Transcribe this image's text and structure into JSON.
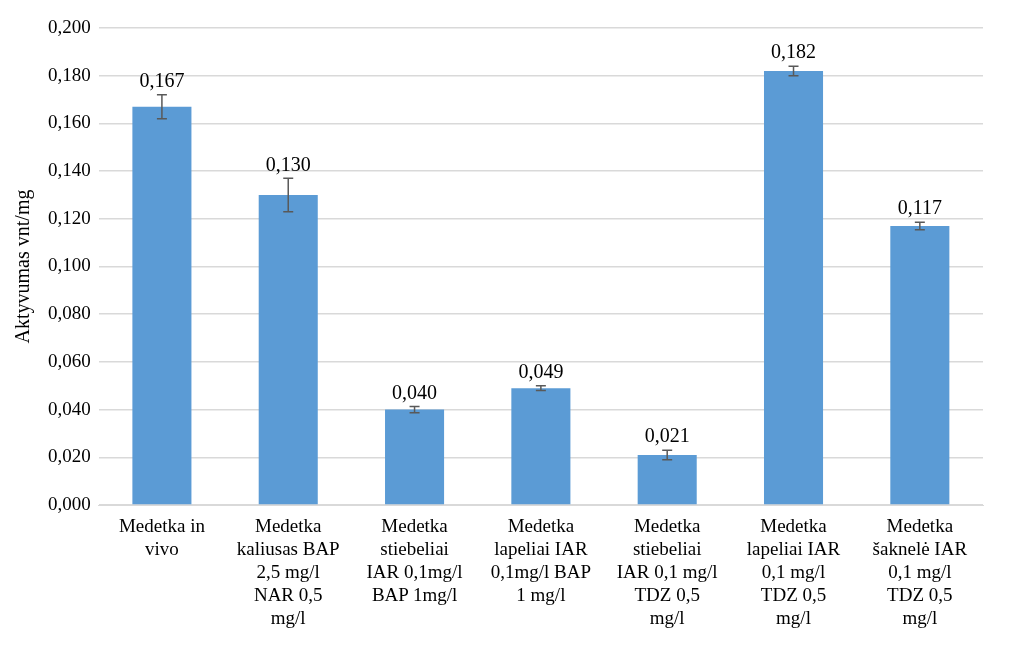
{
  "chart_data": {
    "type": "bar",
    "ylabel": "Aktyvumas vnt/mg",
    "categories": [
      "Medetka in vivo",
      "Medetka kaliusas BAP 2,5 mg/l NAR 0,5 mg/l",
      "Medetka stiebeliai IAR 0,1mg/l BAP 1mg/l",
      "Medetka lapeliai IAR 0,1mg/l BAP 1 mg/l",
      "Medetka stiebeliai IAR 0,1 mg/l TDZ 0,5 mg/l",
      "Medetka lapeliai IAR 0,1 mg/l TDZ 0,5 mg/l",
      "Medetka šaknelė IAR 0,1 mg/l TDZ 0,5 mg/l"
    ],
    "values": [
      0.167,
      0.13,
      0.04,
      0.049,
      0.021,
      0.182,
      0.117
    ],
    "value_labels": [
      "0,167",
      "0,130",
      "0,040",
      "0,049",
      "0,021",
      "0,182",
      "0,117"
    ],
    "errors": [
      0.005,
      0.007,
      0.0013,
      0.001,
      0.002,
      0.002,
      0.0016
    ],
    "color": "#5b9bd5",
    "ylim": [
      0,
      0.2
    ],
    "yticks": [
      {
        "value": 0,
        "label": "0,000"
      },
      {
        "value": 0.02,
        "label": "0,020"
      },
      {
        "value": 0.04,
        "label": "0,040"
      },
      {
        "value": 0.06,
        "label": "0,060"
      },
      {
        "value": 0.08,
        "label": "0,080"
      },
      {
        "value": 0.1,
        "label": "0,100"
      },
      {
        "value": 0.12,
        "label": "0,120"
      },
      {
        "value": 0.14,
        "label": "0,140"
      },
      {
        "value": 0.16,
        "label": "0,160"
      },
      {
        "value": 0.18,
        "label": "0,180"
      },
      {
        "value": 0.2,
        "label": "0,200"
      }
    ],
    "grid": "y"
  }
}
